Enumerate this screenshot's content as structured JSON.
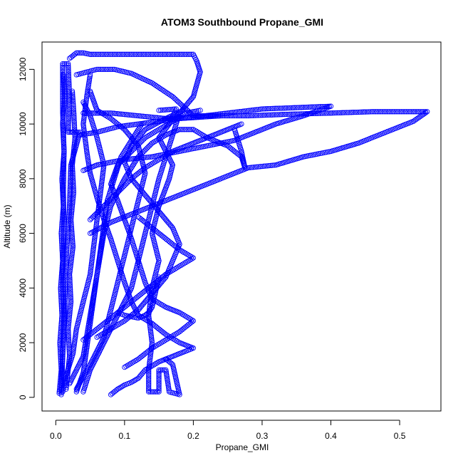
{
  "chart_data": {
    "type": "scatter",
    "title": "ATOM3 Southbound Propane_GMI",
    "xlabel": "Propane_GMI",
    "ylabel": "Altitude (m)",
    "xlim": [
      -0.02,
      0.56
    ],
    "ylim": [
      -500,
      13000
    ],
    "x_ticks": [
      0.0,
      0.1,
      0.2,
      0.3,
      0.4,
      0.5
    ],
    "x_tick_labels": [
      "0.0",
      "0.1",
      "0.2",
      "0.3",
      "0.4",
      "0.5"
    ],
    "y_ticks": [
      0,
      2000,
      4000,
      6000,
      8000,
      10000,
      12000
    ],
    "y_tick_labels": [
      "0",
      "2000",
      "4000",
      "6000",
      "8000",
      "10000",
      "12000"
    ],
    "marker": "open-circle",
    "grid": false,
    "legend": "none",
    "color": "#0000ff",
    "series": [
      {
        "points": [
          [
            0.008,
            100
          ],
          [
            0.01,
            1500
          ],
          [
            0.012,
            3000
          ],
          [
            0.01,
            4500
          ],
          [
            0.012,
            6000
          ],
          [
            0.011,
            7500
          ],
          [
            0.012,
            9000
          ],
          [
            0.01,
            10500
          ],
          [
            0.01,
            12200
          ],
          [
            0.018,
            12200
          ],
          [
            0.02,
            11000
          ],
          [
            0.018,
            9700
          ],
          [
            0.025,
            9700
          ],
          [
            0.035,
            9700
          ],
          [
            0.022,
            8500
          ],
          [
            0.02,
            7000
          ],
          [
            0.015,
            5000
          ],
          [
            0.013,
            3000
          ],
          [
            0.01,
            1500
          ],
          [
            0.008,
            300
          ]
        ]
      },
      {
        "points": [
          [
            0.02,
            12400
          ],
          [
            0.03,
            12600
          ],
          [
            0.04,
            12600
          ],
          [
            0.05,
            12550
          ],
          [
            0.08,
            12550
          ],
          [
            0.12,
            12550
          ],
          [
            0.16,
            12550
          ],
          [
            0.2,
            12550
          ],
          [
            0.205,
            12300
          ],
          [
            0.21,
            11900
          ],
          [
            0.2,
            11000
          ],
          [
            0.18,
            10400
          ],
          [
            0.17,
            9600
          ],
          [
            0.16,
            8800
          ],
          [
            0.15,
            8000
          ],
          [
            0.14,
            7000
          ],
          [
            0.13,
            6000
          ],
          [
            0.12,
            5000
          ],
          [
            0.11,
            4000
          ],
          [
            0.09,
            3000
          ],
          [
            0.07,
            2000
          ],
          [
            0.05,
            1000
          ],
          [
            0.04,
            200
          ]
        ]
      },
      {
        "points": [
          [
            0.03,
            11800
          ],
          [
            0.06,
            12000
          ],
          [
            0.085,
            12000
          ],
          [
            0.11,
            11850
          ],
          [
            0.14,
            11500
          ],
          [
            0.17,
            11000
          ],
          [
            0.2,
            10300
          ],
          [
            0.23,
            10300
          ],
          [
            0.28,
            10300
          ],
          [
            0.33,
            10350
          ],
          [
            0.4,
            10400
          ],
          [
            0.46,
            10450
          ],
          [
            0.54,
            10450
          ],
          [
            0.52,
            10100
          ],
          [
            0.48,
            9700
          ],
          [
            0.44,
            9300
          ],
          [
            0.4,
            9000
          ],
          [
            0.36,
            8800
          ],
          [
            0.32,
            8500
          ],
          [
            0.28,
            8400
          ],
          [
            0.24,
            8000
          ],
          [
            0.2,
            7600
          ],
          [
            0.16,
            7200
          ],
          [
            0.12,
            6800
          ],
          [
            0.08,
            6400
          ],
          [
            0.05,
            6000
          ]
        ]
      },
      {
        "points": [
          [
            0.04,
            10400
          ],
          [
            0.08,
            10400
          ],
          [
            0.12,
            10300
          ],
          [
            0.16,
            10200
          ],
          [
            0.2,
            10250
          ],
          [
            0.25,
            10400
          ],
          [
            0.3,
            10550
          ],
          [
            0.35,
            10600
          ],
          [
            0.4,
            10650
          ],
          [
            0.36,
            10300
          ],
          [
            0.32,
            10000
          ],
          [
            0.29,
            9700
          ],
          [
            0.26,
            9400
          ],
          [
            0.22,
            9200
          ],
          [
            0.18,
            9000
          ],
          [
            0.14,
            8800
          ],
          [
            0.1,
            8700
          ],
          [
            0.06,
            8500
          ],
          [
            0.04,
            8300
          ]
        ]
      },
      {
        "points": [
          [
            0.15,
            10500
          ],
          [
            0.175,
            10550
          ],
          [
            0.165,
            10000
          ],
          [
            0.15,
            9500
          ],
          [
            0.16,
            9000
          ],
          [
            0.17,
            8500
          ],
          [
            0.165,
            8000
          ],
          [
            0.15,
            7000
          ],
          [
            0.14,
            6000
          ],
          [
            0.15,
            5000
          ],
          [
            0.14,
            4000
          ],
          [
            0.135,
            3000
          ],
          [
            0.14,
            2000
          ],
          [
            0.135,
            1000
          ],
          [
            0.135,
            200
          ],
          [
            0.15,
            200
          ],
          [
            0.15,
            1000
          ],
          [
            0.16,
            1000
          ],
          [
            0.165,
            200
          ],
          [
            0.18,
            100
          ],
          [
            0.17,
            1200
          ],
          [
            0.16,
            1400
          ]
        ]
      },
      {
        "points": [
          [
            0.02,
            500
          ],
          [
            0.04,
            1500
          ],
          [
            0.05,
            3000
          ],
          [
            0.06,
            4500
          ],
          [
            0.07,
            6000
          ],
          [
            0.08,
            7000
          ],
          [
            0.1,
            8000
          ],
          [
            0.12,
            8800
          ],
          [
            0.14,
            9300
          ],
          [
            0.16,
            9600
          ],
          [
            0.18,
            9800
          ],
          [
            0.2,
            9800
          ],
          [
            0.22,
            9500
          ],
          [
            0.25,
            9200
          ],
          [
            0.27,
            8800
          ],
          [
            0.275,
            8400
          ],
          [
            0.27,
            9000
          ],
          [
            0.26,
            9800
          ]
        ]
      },
      {
        "points": [
          [
            0.08,
            100
          ],
          [
            0.09,
            300
          ],
          [
            0.1,
            450
          ],
          [
            0.11,
            550
          ],
          [
            0.12,
            700
          ],
          [
            0.13,
            1000
          ],
          [
            0.15,
            1300
          ],
          [
            0.17,
            1500
          ],
          [
            0.19,
            1700
          ],
          [
            0.2,
            1800
          ],
          [
            0.18,
            2000
          ],
          [
            0.16,
            2300
          ],
          [
            0.14,
            2700
          ],
          [
            0.12,
            3000
          ],
          [
            0.11,
            3500
          ],
          [
            0.1,
            4200
          ],
          [
            0.09,
            5000
          ],
          [
            0.08,
            5800
          ],
          [
            0.07,
            6500
          ],
          [
            0.06,
            7300
          ],
          [
            0.05,
            8200
          ],
          [
            0.045,
            9000
          ],
          [
            0.04,
            10000
          ],
          [
            0.045,
            11000
          ],
          [
            0.05,
            11800
          ]
        ]
      },
      {
        "points": [
          [
            0.03,
            300
          ],
          [
            0.05,
            1200
          ],
          [
            0.07,
            2200
          ],
          [
            0.08,
            3200
          ],
          [
            0.09,
            4200
          ],
          [
            0.1,
            5200
          ],
          [
            0.11,
            6200
          ],
          [
            0.12,
            7200
          ],
          [
            0.13,
            8200
          ],
          [
            0.12,
            9200
          ],
          [
            0.1,
            9800
          ],
          [
            0.08,
            10200
          ],
          [
            0.06,
            10500
          ],
          [
            0.05,
            11200
          ]
        ]
      },
      {
        "points": [
          [
            0.01,
            200
          ],
          [
            0.015,
            800
          ],
          [
            0.025,
            1600
          ],
          [
            0.03,
            2500
          ],
          [
            0.04,
            3500
          ],
          [
            0.05,
            4500
          ],
          [
            0.055,
            5500
          ],
          [
            0.06,
            6500
          ],
          [
            0.065,
            7500
          ],
          [
            0.07,
            8500
          ],
          [
            0.06,
            9500
          ],
          [
            0.05,
            10300
          ],
          [
            0.04,
            10800
          ]
        ]
      },
      {
        "points": [
          [
            0.1,
            1100
          ],
          [
            0.12,
            1400
          ],
          [
            0.14,
            1800
          ],
          [
            0.16,
            2100
          ],
          [
            0.18,
            2400
          ],
          [
            0.2,
            2800
          ],
          [
            0.18,
            3100
          ],
          [
            0.16,
            3300
          ],
          [
            0.14,
            3600
          ],
          [
            0.13,
            4200
          ],
          [
            0.12,
            5000
          ],
          [
            0.11,
            5800
          ],
          [
            0.1,
            6500
          ],
          [
            0.09,
            7200
          ],
          [
            0.08,
            7800
          ],
          [
            0.09,
            8500
          ],
          [
            0.11,
            9000
          ],
          [
            0.13,
            9500
          ],
          [
            0.15,
            9800
          ],
          [
            0.17,
            10100
          ],
          [
            0.19,
            10400
          ],
          [
            0.21,
            10500
          ]
        ]
      },
      {
        "points": [
          [
            0.06,
            2200
          ],
          [
            0.08,
            2500
          ],
          [
            0.1,
            2800
          ],
          [
            0.12,
            3200
          ],
          [
            0.14,
            3800
          ],
          [
            0.16,
            4400
          ],
          [
            0.17,
            5000
          ],
          [
            0.18,
            5600
          ],
          [
            0.17,
            6200
          ],
          [
            0.15,
            6800
          ],
          [
            0.13,
            7400
          ],
          [
            0.11,
            8000
          ],
          [
            0.1,
            8600
          ],
          [
            0.11,
            9200
          ],
          [
            0.13,
            9800
          ],
          [
            0.16,
            10200
          ],
          [
            0.185,
            10500
          ]
        ]
      },
      {
        "points": [
          [
            0.005,
            150
          ],
          [
            0.008,
            1000
          ],
          [
            0.006,
            2000
          ],
          [
            0.009,
            3000
          ],
          [
            0.007,
            4000
          ],
          [
            0.01,
            5000
          ],
          [
            0.008,
            6000
          ],
          [
            0.011,
            7000
          ],
          [
            0.009,
            8000
          ],
          [
            0.012,
            9000
          ],
          [
            0.01,
            10000
          ],
          [
            0.013,
            11000
          ],
          [
            0.011,
            11800
          ]
        ]
      },
      {
        "points": [
          [
            0.015,
            300
          ],
          [
            0.02,
            1500
          ],
          [
            0.018,
            2500
          ],
          [
            0.022,
            3500
          ],
          [
            0.02,
            4500
          ],
          [
            0.025,
            5500
          ],
          [
            0.022,
            6500
          ],
          [
            0.026,
            7500
          ],
          [
            0.024,
            8500
          ],
          [
            0.028,
            9500
          ],
          [
            0.026,
            10500
          ],
          [
            0.024,
            11200
          ]
        ]
      },
      {
        "points": [
          [
            0.03,
            200
          ],
          [
            0.04,
            900
          ],
          [
            0.045,
            1800
          ],
          [
            0.05,
            2700
          ],
          [
            0.055,
            3600
          ],
          [
            0.06,
            4500
          ],
          [
            0.065,
            5400
          ],
          [
            0.07,
            6300
          ],
          [
            0.075,
            7200
          ],
          [
            0.085,
            8000
          ],
          [
            0.095,
            8800
          ],
          [
            0.11,
            9400
          ],
          [
            0.125,
            10000
          ]
        ]
      },
      {
        "points": [
          [
            0.15,
            4400
          ],
          [
            0.14,
            3300
          ],
          [
            0.135,
            3100
          ],
          [
            0.13,
            3000
          ],
          [
            0.12,
            2900
          ],
          [
            0.11,
            2950
          ],
          [
            0.1,
            3000
          ],
          [
            0.09,
            3100
          ]
        ]
      },
      {
        "points": [
          [
            0.035,
            9600
          ],
          [
            0.06,
            9700
          ],
          [
            0.09,
            9900
          ],
          [
            0.12,
            10000
          ],
          [
            0.15,
            10100
          ],
          [
            0.18,
            10200
          ],
          [
            0.21,
            10250
          ],
          [
            0.24,
            10300
          ]
        ]
      },
      {
        "points": [
          [
            0.12,
            6600
          ],
          [
            0.14,
            6200
          ],
          [
            0.16,
            5800
          ],
          [
            0.18,
            5400
          ],
          [
            0.2,
            5100
          ],
          [
            0.18,
            4800
          ],
          [
            0.16,
            4500
          ],
          [
            0.14,
            4100
          ],
          [
            0.12,
            3700
          ],
          [
            0.1,
            3300
          ],
          [
            0.08,
            2900
          ],
          [
            0.06,
            2500
          ],
          [
            0.04,
            2100
          ]
        ]
      },
      {
        "points": [
          [
            0.05,
            6500
          ],
          [
            0.07,
            7000
          ],
          [
            0.09,
            7500
          ],
          [
            0.11,
            8000
          ],
          [
            0.13,
            8400
          ],
          [
            0.15,
            8700
          ],
          [
            0.17,
            9000
          ],
          [
            0.19,
            9200
          ],
          [
            0.21,
            9400
          ],
          [
            0.23,
            9600
          ],
          [
            0.25,
            9800
          ],
          [
            0.27,
            10000
          ]
        ]
      }
    ]
  }
}
